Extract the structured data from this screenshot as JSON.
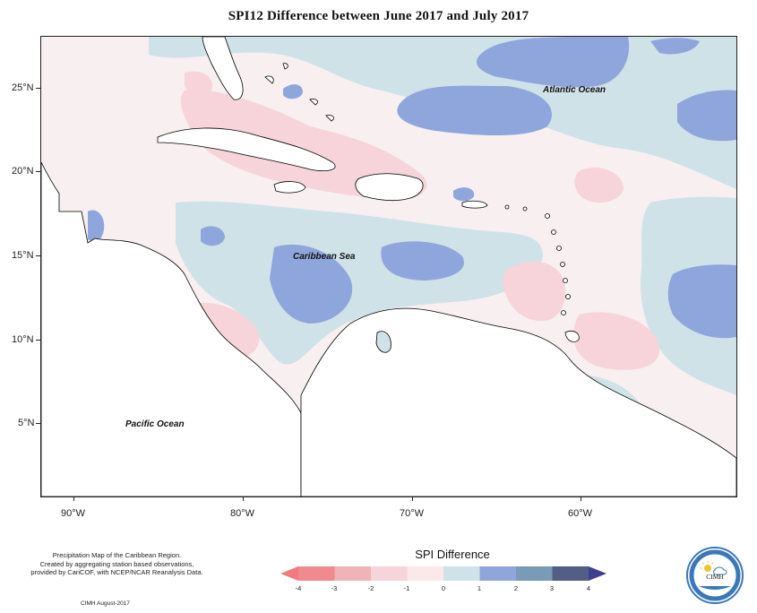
{
  "title": "SPI12 Difference between June 2017 and July 2017",
  "ocean_labels": {
    "atlantic": "Atlantic Ocean",
    "caribbean": "Caribbean Sea",
    "pacific": "Pacific Ocean"
  },
  "lat_labels": [
    "25°N",
    "20°N",
    "15°N",
    "10°N",
    "5°N"
  ],
  "lon_labels": [
    "90°W",
    "80°W",
    "70°W",
    "60°W"
  ],
  "legend": {
    "title": "SPI Difference",
    "ticks": [
      "-4",
      "-3",
      "-2",
      "-1",
      "0",
      "1",
      "2",
      "3",
      "4"
    ],
    "colors": [
      "#f08a8f",
      "#efb3b8",
      "#f6d4d9",
      "#fbe8ea",
      "#cfe2e8",
      "#8fa6dc",
      "#7a9bb7",
      "#535e86"
    ],
    "end_colors": {
      "low": "#f07a80",
      "high": "#3f3f8f"
    }
  },
  "footer": {
    "line1": "Precipitation Map of the Caribbean Region.",
    "line2": "Created by aggregating station based observations,",
    "line3": "provided by CariCOF, with NCEP/NCAR Reanalysis Data.",
    "credit": "CIMH August-2017"
  },
  "logo": {
    "text": "CIMH"
  },
  "colors": {
    "pink_light": "#fbe8ea",
    "pink": "#f6d4d9",
    "pink_mid": "#efb3b8",
    "blue_light": "#cfe2e8",
    "blue_mid": "#8fa6dc",
    "land": "#ffffff",
    "coast": "#000000"
  }
}
